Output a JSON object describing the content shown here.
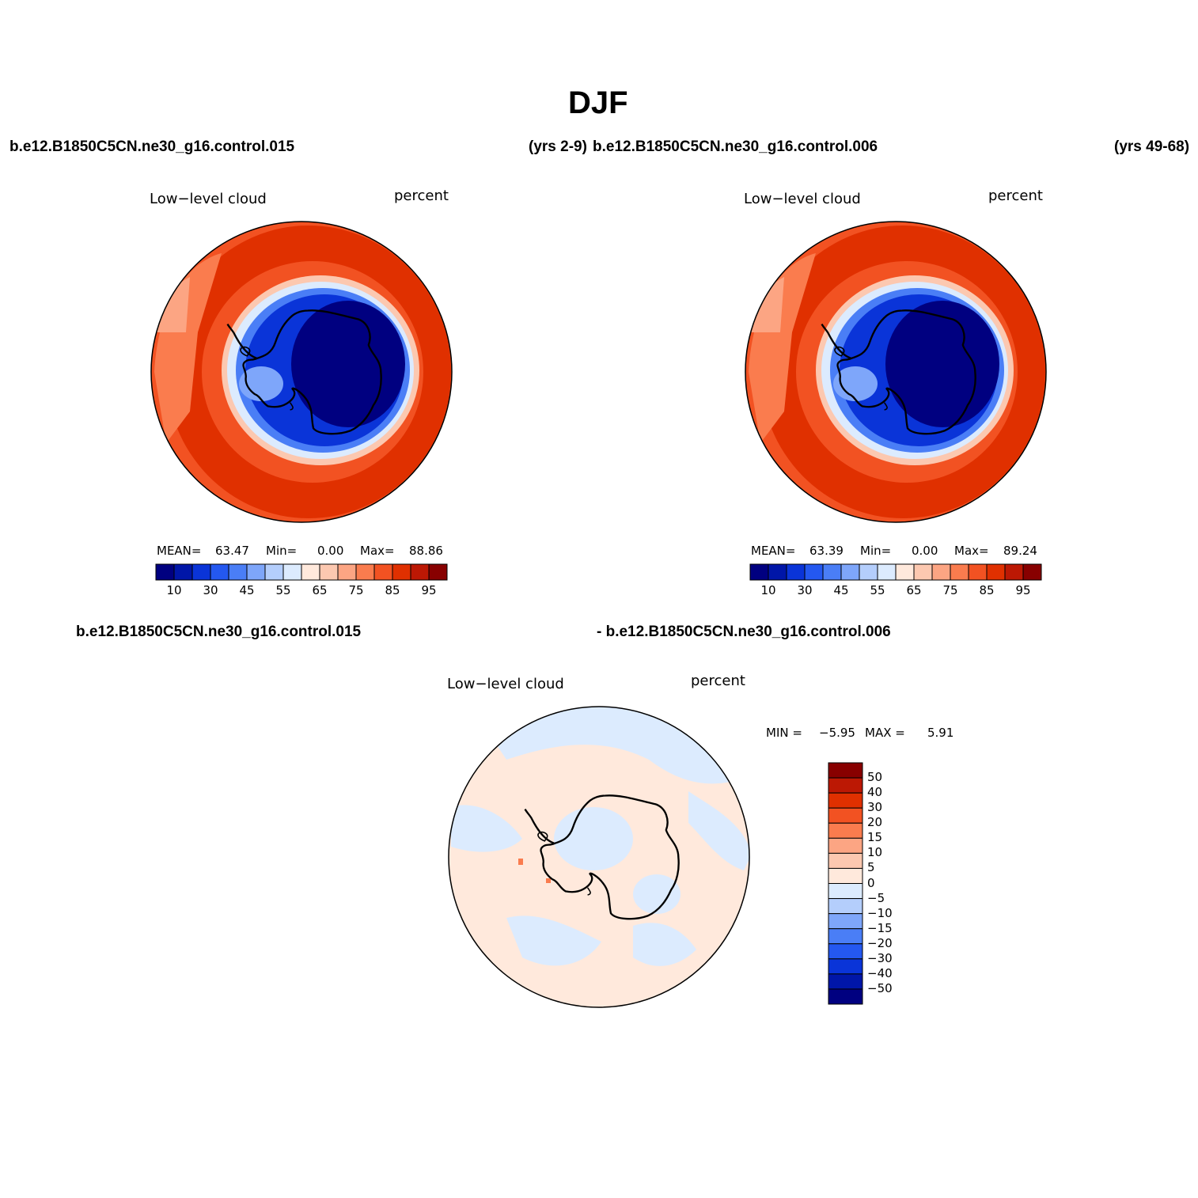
{
  "title": "DJF",
  "run_labels": {
    "p1_left": "b.e12.B1850C5CN.ne30_g16.control.015",
    "p1_right": "(yrs 2-9)",
    "p2_left": "b.e12.B1850C5CN.ne30_g16.control.006",
    "p2_right": "(yrs 49-68)",
    "diff_left": "b.e12.B1850C5CN.ne30_g16.control.015",
    "diff_right": "- b.e12.B1850C5CN.ne30_g16.control.006"
  },
  "panels": [
    {
      "variable": "Low−level cloud",
      "units": "percent",
      "mean_label": "MEAN=",
      "mean": "63.47",
      "min_label": "Min=",
      "min": "0.00",
      "max_label": "Max=",
      "max": "88.86"
    },
    {
      "variable": "Low−level cloud",
      "units": "percent",
      "mean_label": "MEAN=",
      "mean": "63.39",
      "min_label": "Min=",
      "min": "0.00",
      "max_label": "Max=",
      "max": "89.24"
    }
  ],
  "diff_panel": {
    "variable": "Low−level cloud",
    "units": "percent",
    "min_label": "MIN =",
    "min": "−5.95",
    "max_label": "MAX =",
    "max": "5.91"
  },
  "colorbar_abs": {
    "tick_labels": [
      "10",
      "30",
      "45",
      "55",
      "65",
      "75",
      "85",
      "95"
    ],
    "colors": [
      "#000080",
      "#0016a8",
      "#0a34d8",
      "#2458f0",
      "#4a7ef6",
      "#7ea6fa",
      "#b4cefc",
      "#dcebfe",
      "#ffe9dc",
      "#fcc8b0",
      "#fca583",
      "#fa7c4e",
      "#f25222",
      "#e03000",
      "#bc1804",
      "#880000"
    ]
  },
  "colorbar_diff": {
    "tick_labels": [
      "50",
      "40",
      "30",
      "20",
      "15",
      "10",
      "5",
      "0",
      "−5",
      "−10",
      "−15",
      "−20",
      "−30",
      "−40",
      "−50"
    ],
    "colors": [
      "#880000",
      "#bc1804",
      "#e03000",
      "#f25222",
      "#fa7c4e",
      "#fca583",
      "#fcc8b0",
      "#ffe9dc",
      "#dcebfe",
      "#b4cefc",
      "#7ea6fa",
      "#4a7ef6",
      "#2458f0",
      "#0a34d8",
      "#0016a8",
      "#000080"
    ]
  },
  "colors": {
    "ocean_high": "#e03000",
    "ocean_mid": "#f25222",
    "ice_edge": "#fcc8b0",
    "antarctic_low": "#000080",
    "antarctic_mid": "#0a34d8",
    "diff_pos": "#ffe9dc",
    "diff_neg": "#dcebfe"
  }
}
